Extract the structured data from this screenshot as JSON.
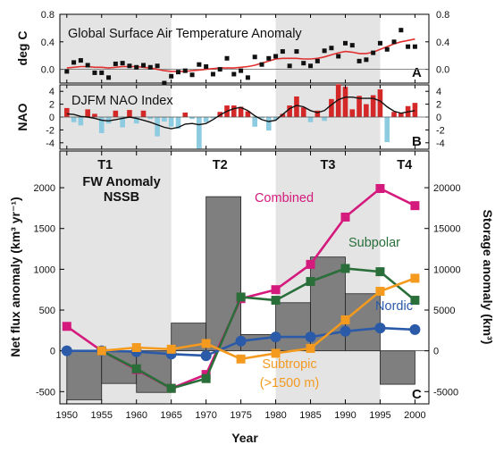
{
  "chart_data": [
    {
      "panel": "A",
      "type": "line",
      "title": "Global Surface Air Temperature Anomaly",
      "ylabel": "deg C",
      "xlim": [
        1949,
        2002
      ],
      "ylim": [
        -0.2,
        0.8
      ],
      "yticks": [
        "0.0",
        "0.4",
        "0.8"
      ],
      "yticks_right": [
        "0.0",
        "0.4",
        "0.8"
      ],
      "colors": {
        "annual": "#111111",
        "smooth": "#e03030"
      },
      "x": [
        1950,
        1951,
        1952,
        1953,
        1954,
        1955,
        1956,
        1957,
        1958,
        1959,
        1960,
        1961,
        1962,
        1963,
        1964,
        1965,
        1966,
        1967,
        1968,
        1969,
        1970,
        1971,
        1972,
        1973,
        1974,
        1975,
        1976,
        1977,
        1978,
        1979,
        1980,
        1981,
        1982,
        1983,
        1984,
        1985,
        1986,
        1987,
        1988,
        1989,
        1990,
        1991,
        1992,
        1993,
        1994,
        1995,
        1996,
        1997,
        1998,
        1999,
        2000
      ],
      "annual": [
        -0.03,
        0.1,
        0.13,
        0.06,
        -0.05,
        -0.05,
        -0.12,
        0.08,
        0.09,
        0.05,
        0.03,
        0.06,
        0.03,
        0.05,
        -0.2,
        -0.1,
        -0.04,
        -0.02,
        -0.08,
        0.07,
        0.04,
        -0.07,
        0.0,
        0.16,
        -0.07,
        -0.02,
        -0.12,
        0.18,
        0.07,
        0.16,
        0.19,
        0.26,
        0.05,
        0.26,
        0.09,
        0.05,
        0.12,
        0.27,
        0.31,
        0.19,
        0.38,
        0.35,
        0.12,
        0.14,
        0.24,
        0.38,
        0.29,
        0.4,
        0.57,
        0.33,
        0.33
      ],
      "smooth": [
        0.02,
        0.03,
        0.04,
        0.04,
        0.03,
        0.03,
        0.02,
        0.03,
        0.04,
        0.04,
        0.04,
        0.03,
        0.02,
        0.0,
        -0.02,
        -0.03,
        -0.03,
        -0.03,
        -0.02,
        -0.01,
        0.0,
        0.01,
        0.02,
        0.02,
        0.02,
        0.03,
        0.04,
        0.06,
        0.09,
        0.12,
        0.15,
        0.16,
        0.16,
        0.16,
        0.15,
        0.15,
        0.16,
        0.18,
        0.21,
        0.24,
        0.26,
        0.25,
        0.23,
        0.23,
        0.25,
        0.29,
        0.33,
        0.37,
        0.4,
        0.42,
        0.44
      ]
    },
    {
      "panel": "B",
      "type": "bar",
      "title": "DJFM NAO Index",
      "ylabel": "NAO",
      "xlim": [
        1949,
        2002
      ],
      "ylim": [
        -5,
        5
      ],
      "yticks": [
        "4",
        "2",
        "0",
        "-2",
        "-4"
      ],
      "yticks_right": [
        "4",
        "2",
        "0",
        "-2",
        "-4"
      ],
      "colors": {
        "positive": "#d42828",
        "negative": "#8ccbe0",
        "smooth": "#111111"
      },
      "x": [
        1950,
        1951,
        1952,
        1953,
        1954,
        1955,
        1956,
        1957,
        1958,
        1959,
        1960,
        1961,
        1962,
        1963,
        1964,
        1965,
        1966,
        1967,
        1968,
        1969,
        1970,
        1971,
        1972,
        1973,
        1974,
        1975,
        1976,
        1977,
        1978,
        1979,
        1980,
        1981,
        1982,
        1983,
        1984,
        1985,
        1986,
        1987,
        1988,
        1989,
        1990,
        1991,
        1992,
        1993,
        1994,
        1995,
        1996,
        1997,
        1998,
        1999,
        2000
      ],
      "values": [
        1.4,
        -0.8,
        -1.3,
        1.2,
        0.5,
        -2.5,
        -1.0,
        1.0,
        -1.6,
        1.1,
        -1.0,
        1.0,
        -0.3,
        -3.0,
        -0.7,
        -1.5,
        -1.8,
        0.7,
        -0.3,
        -4.9,
        -0.8,
        -0.2,
        0.8,
        1.8,
        1.8,
        1.6,
        0.9,
        -1.5,
        -0.2,
        -2.1,
        -0.4,
        0.5,
        1.8,
        3.2,
        1.5,
        -0.8,
        1.0,
        -0.6,
        2.8,
        5.1,
        4.7,
        1.2,
        3.3,
        2.0,
        3.4,
        4.3,
        -3.9,
        0.8,
        0.6,
        1.7,
        2.2
      ],
      "smooth": [
        0.5,
        0.4,
        0.1,
        0.0,
        -0.2,
        -0.5,
        -0.6,
        -0.4,
        -0.2,
        0.0,
        -0.2,
        -0.5,
        -0.8,
        -1.2,
        -1.6,
        -1.8,
        -1.6,
        -1.1,
        -1.0,
        -1.2,
        -1.0,
        -0.4,
        0.3,
        0.9,
        1.3,
        1.5,
        1.0,
        0.2,
        -0.4,
        -0.7,
        -0.5,
        0.4,
        1.3,
        1.8,
        1.6,
        1.0,
        0.7,
        1.0,
        1.9,
        2.7,
        3.1,
        3.1,
        2.9,
        2.9,
        2.9,
        2.5,
        1.6,
        0.9,
        0.6,
        0.8,
        1.0
      ]
    },
    {
      "panel": "C",
      "type": "line",
      "title": "FW Anomaly NSSB",
      "xlabel": "Year",
      "ylabel": "Net flux anomaly (km³ yr⁻¹)",
      "ylabel_right": "Storage anomaly (km³)",
      "xlim": [
        1949,
        2002
      ],
      "ylim": [
        -650,
        2450
      ],
      "ylim_right": [
        -6500,
        24500
      ],
      "xticks": [
        "1950",
        "1955",
        "1960",
        "1965",
        "1970",
        "1975",
        "1980",
        "1985",
        "1990",
        "1995",
        "2000"
      ],
      "yticks": [
        "-500",
        "0",
        "500",
        "1000",
        "1500",
        "2000"
      ],
      "yticks_right": [
        "-5000",
        "0",
        "5000",
        "10000",
        "15000",
        "20000"
      ],
      "periods": [
        {
          "label": "T1",
          "shaded": true
        },
        {
          "label": "T2",
          "shaded": false
        },
        {
          "label": "T3",
          "shaded": true
        },
        {
          "label": "T4",
          "shaded": false
        }
      ],
      "storage_bars": {
        "color": "#7f7f7f",
        "bins": [
          {
            "x0": 1950,
            "x1": 1955,
            "value": -6000
          },
          {
            "x0": 1955,
            "x1": 1960,
            "value": -4000
          },
          {
            "x0": 1960,
            "x1": 1965,
            "value": -5100
          },
          {
            "x0": 1965,
            "x1": 1970,
            "value": 3400
          },
          {
            "x0": 1970,
            "x1": 1975,
            "value": 18900
          },
          {
            "x0": 1975,
            "x1": 1980,
            "value": 2000
          },
          {
            "x0": 1980,
            "x1": 1985,
            "value": 5900
          },
          {
            "x0": 1985,
            "x1": 1990,
            "value": 11500
          },
          {
            "x0": 1990,
            "x1": 1995,
            "value": 7000
          },
          {
            "x0": 1995,
            "x1": 2000,
            "value": -4100
          }
        ]
      },
      "x": [
        1950,
        1955,
        1960,
        1965,
        1970,
        1975,
        1980,
        1985,
        1990,
        1995,
        2000
      ],
      "series": [
        {
          "name": "Combined",
          "color": "#d41a7c",
          "marker": "square",
          "values": [
            300,
            0,
            -230,
            -460,
            -290,
            640,
            750,
            1060,
            1640,
            1990,
            1780
          ]
        },
        {
          "name": "Subpolar",
          "color": "#2a6e3a",
          "marker": "square",
          "values": [
            null,
            0,
            -220,
            -460,
            -340,
            660,
            620,
            850,
            1010,
            970,
            620
          ]
        },
        {
          "name": "Nordic",
          "color": "#2a5aa8",
          "marker": "circle",
          "values": [
            0,
            0,
            -10,
            -40,
            -60,
            120,
            170,
            170,
            240,
            280,
            260
          ]
        },
        {
          "name": "Subtropic (>1500 m)",
          "label_lines": [
            "Subtropic",
            "(>1500 m)"
          ],
          "color": "#f39a1f",
          "marker": "square",
          "values": [
            null,
            0,
            40,
            20,
            90,
            -100,
            -30,
            30,
            380,
            730,
            890
          ]
        }
      ]
    }
  ]
}
